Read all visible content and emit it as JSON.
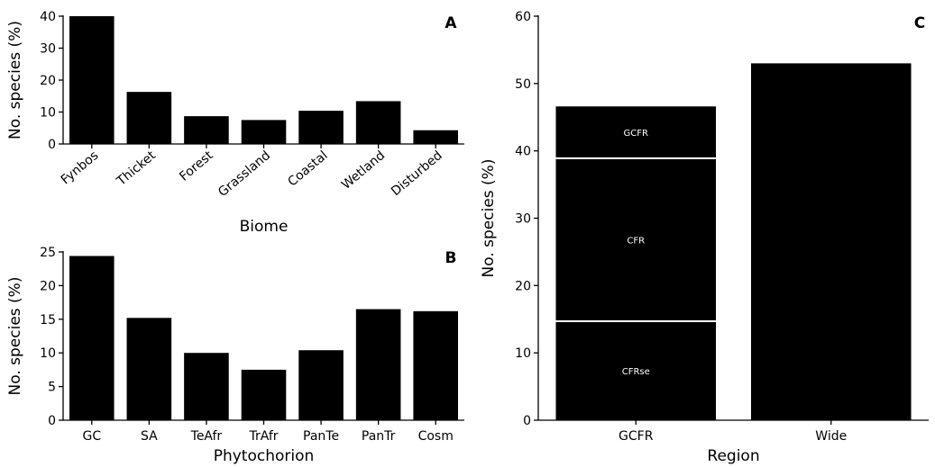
{
  "chart_data": [
    {
      "panel": "A",
      "type": "bar",
      "xlabel": "Biome",
      "ylabel": "No. species (%)",
      "categories": [
        "Fynbos",
        "Thicket",
        "Forest",
        "Grassland",
        "Coastal",
        "Wetland",
        "Disturbed"
      ],
      "values": [
        40,
        16.3,
        8.7,
        7.5,
        10.4,
        13.4,
        4.3
      ],
      "ylim": [
        0,
        40
      ],
      "yticks": [
        "0",
        "10",
        "20",
        "30",
        "40"
      ],
      "bar_color": "#000000"
    },
    {
      "panel": "B",
      "type": "bar",
      "xlabel": "Phytochorion",
      "ylabel": "No. species (%)",
      "categories": [
        "GC",
        "SA",
        "TeAfr",
        "TrAfr",
        "PanTe",
        "PanTr",
        "Cosm"
      ],
      "values": [
        24.4,
        15.2,
        10.0,
        7.5,
        10.4,
        16.5,
        16.2
      ],
      "ylim": [
        0,
        25
      ],
      "yticks": [
        "0",
        "5",
        "10",
        "15",
        "20",
        "25"
      ],
      "bar_color": "#000000"
    },
    {
      "panel": "C",
      "type": "bar",
      "xlabel": "Region",
      "ylabel": "No. species (%)",
      "categories": [
        "GCFR",
        "Wide"
      ],
      "series": [
        {
          "name": "CFRse",
          "values": [
            14.7,
            0
          ]
        },
        {
          "name": "CFR",
          "values": [
            24.2,
            0
          ]
        },
        {
          "name": "GCFR",
          "values": [
            7.7,
            0
          ]
        },
        {
          "values": [
            0,
            53.0
          ]
        }
      ],
      "stacked": true,
      "ylim": [
        0,
        60
      ],
      "yticks": [
        "0",
        "10",
        "20",
        "30",
        "40",
        "50",
        "60"
      ],
      "bar_color": "#000000",
      "separator_color": "#ffffff"
    }
  ]
}
